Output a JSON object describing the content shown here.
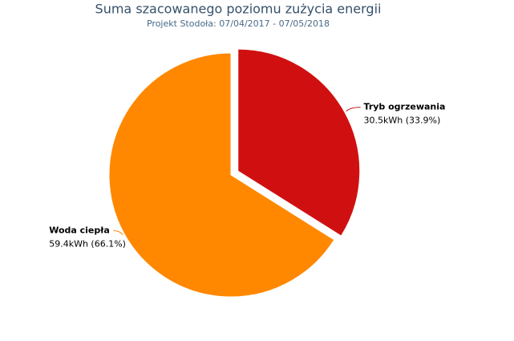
{
  "chart_data": {
    "type": "pie",
    "title": "Suma szacowanego poziomu zużycia energii",
    "subtitle": "Projekt Stodoła: 07/04/2017 - 07/05/2018",
    "categories": [
      "Tryb ogrzewania",
      "Woda ciepła"
    ],
    "values": [
      30.5,
      59.4
    ],
    "value_labels": [
      "30.5kWh (33.9%)",
      "59.4kWh (66.1%)"
    ],
    "colors": [
      "#d01010",
      "#ff8800"
    ],
    "exploded": [
      true,
      false
    ]
  }
}
